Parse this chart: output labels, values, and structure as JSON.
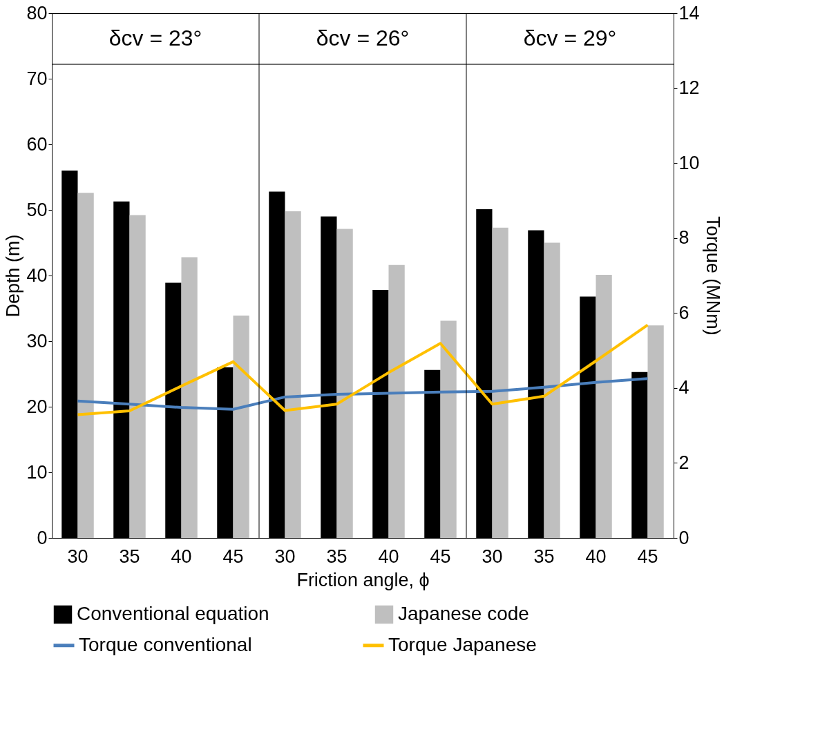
{
  "chart_data": {
    "type": "bar",
    "categories": [
      "30",
      "35",
      "40",
      "45",
      "30",
      "35",
      "40",
      "45",
      "30",
      "35",
      "40",
      "45"
    ],
    "xlabel": "Friction angle, ϕ",
    "ylabel": "Depth (m)",
    "y2label": "Torque (MNm)",
    "series": [
      {
        "name": "Conventional equation",
        "color": "#000000",
        "values": [
          56.0,
          51.3,
          38.9,
          26.0,
          52.8,
          49.0,
          37.8,
          25.6,
          50.1,
          46.9,
          36.8,
          25.3
        ]
      },
      {
        "name": "Japanese code",
        "color": "#bfbfbf",
        "values": [
          52.6,
          49.2,
          42.8,
          33.9,
          49.8,
          47.1,
          41.6,
          33.1,
          47.3,
          45.0,
          40.1,
          32.4
        ]
      },
      {
        "name": "Torque conventional",
        "type": "line",
        "axis": "y2",
        "color": "#4a7ebb",
        "values": [
          3.65,
          3.57,
          3.48,
          3.43,
          3.76,
          3.83,
          3.86,
          3.89,
          3.91,
          4.02,
          4.15,
          4.25
        ]
      },
      {
        "name": "Torque Japanese",
        "type": "line",
        "axis": "y2",
        "color": "#ffc000",
        "values": [
          3.29,
          3.39,
          4.05,
          4.7,
          3.4,
          3.57,
          4.41,
          5.19,
          3.57,
          3.78,
          4.72,
          5.68
        ]
      }
    ],
    "ylim": [
      0,
      80
    ],
    "yticks": [
      0,
      10,
      20,
      30,
      40,
      50,
      60,
      70,
      80
    ],
    "y2lim": [
      0,
      14
    ],
    "y2ticks": [
      0,
      2,
      4,
      6,
      8,
      10,
      12,
      14
    ],
    "annotations": [
      "δcv = 23°",
      "δcv = 26°",
      "δcv = 29°"
    ],
    "legend": "bottom",
    "grid": false
  }
}
